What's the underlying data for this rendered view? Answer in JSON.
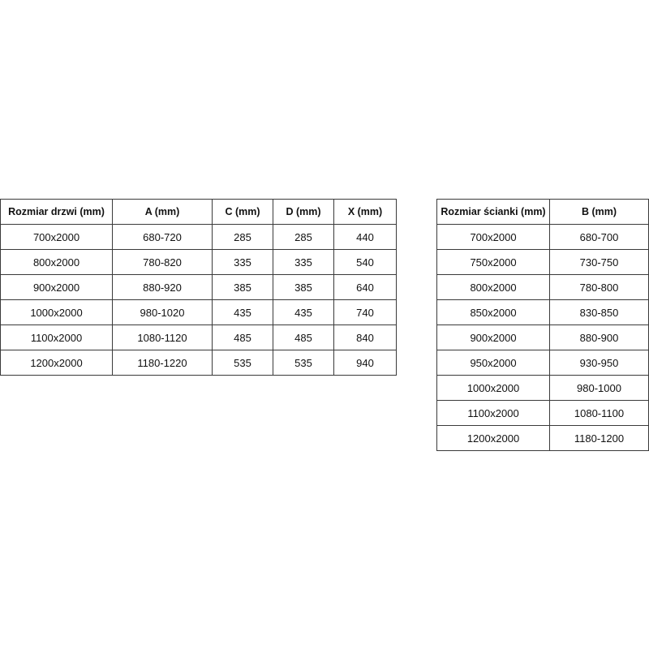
{
  "doors_table": {
    "headers": [
      "Rozmiar drzwi (mm)",
      "A (mm)",
      "C (mm)",
      "D (mm)",
      "X (mm)"
    ],
    "rows": [
      [
        "700x2000",
        "680-720",
        "285",
        "285",
        "440"
      ],
      [
        "800x2000",
        "780-820",
        "335",
        "335",
        "540"
      ],
      [
        "900x2000",
        "880-920",
        "385",
        "385",
        "640"
      ],
      [
        "1000x2000",
        "980-1020",
        "435",
        "435",
        "740"
      ],
      [
        "1100x2000",
        "1080-1120",
        "485",
        "485",
        "840"
      ],
      [
        "1200x2000",
        "1180-1220",
        "535",
        "535",
        "940"
      ]
    ]
  },
  "wall_table": {
    "headers": [
      "Rozmiar ścianki (mm)",
      "B (mm)"
    ],
    "rows": [
      [
        "700x2000",
        "680-700"
      ],
      [
        "750x2000",
        "730-750"
      ],
      [
        "800x2000",
        "780-800"
      ],
      [
        "850x2000",
        "830-850"
      ],
      [
        "900x2000",
        "880-900"
      ],
      [
        "950x2000",
        "930-950"
      ],
      [
        "1000x2000",
        "980-1000"
      ],
      [
        "1100x2000",
        "1080-1100"
      ],
      [
        "1200x2000",
        "1180-1200"
      ]
    ]
  }
}
